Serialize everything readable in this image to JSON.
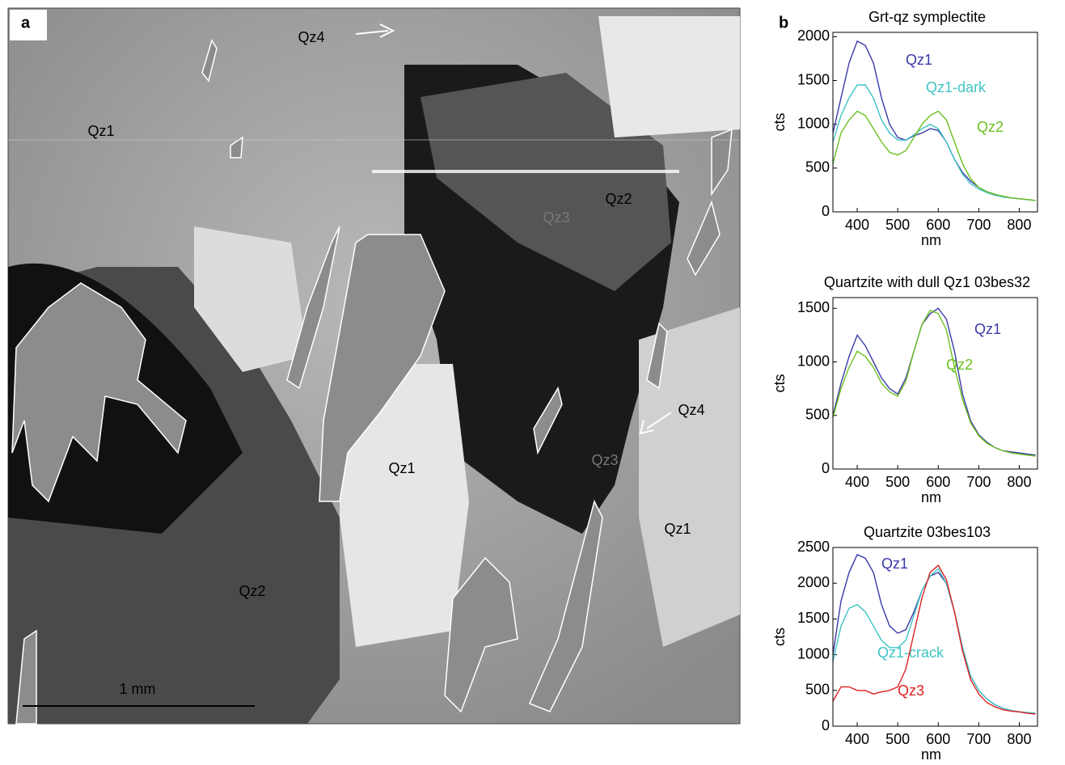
{
  "panel_a": {
    "label": "a",
    "annotations": [
      "Qz4",
      "Qz1",
      "Qz3",
      "Qz2",
      "Qz4",
      "Qz3",
      "Qz1",
      "Qz1",
      "Qz2"
    ],
    "scale_bar": "1 mm"
  },
  "panel_b": {
    "label": "b"
  },
  "chart_data": [
    {
      "type": "line",
      "title": "Grt-qz symplectite",
      "xlabel": "nm",
      "ylabel": "cts",
      "x": [
        340,
        360,
        380,
        400,
        420,
        440,
        460,
        480,
        500,
        520,
        540,
        560,
        580,
        600,
        620,
        640,
        660,
        680,
        700,
        720,
        740,
        760,
        780,
        800,
        820,
        840
      ],
      "xlim": [
        340,
        845
      ],
      "xticks": [
        400,
        500,
        600,
        700,
        800
      ],
      "ylim": [
        0,
        2050
      ],
      "yticks": [
        0,
        500,
        1000,
        1500,
        2000
      ],
      "series": [
        {
          "name": "Qz1",
          "color": "#3a3aa8",
          "values": [
            900,
            1300,
            1700,
            1950,
            1900,
            1700,
            1300,
            1000,
            850,
            820,
            870,
            900,
            950,
            930,
            800,
            600,
            450,
            350,
            280,
            230,
            200,
            170,
            160,
            150,
            140,
            130
          ]
        },
        {
          "name": "Qz1-dark",
          "color": "#40c4c4",
          "values": [
            800,
            1100,
            1300,
            1450,
            1450,
            1300,
            1050,
            900,
            820,
            820,
            880,
            950,
            1000,
            950,
            800,
            600,
            430,
            320,
            260,
            220,
            190,
            170,
            160,
            150,
            140,
            130
          ]
        },
        {
          "name": "Qz2",
          "color": "#6cc020",
          "values": [
            550,
            900,
            1050,
            1150,
            1100,
            950,
            800,
            680,
            650,
            700,
            850,
            1000,
            1100,
            1150,
            1050,
            800,
            550,
            380,
            280,
            230,
            200,
            180,
            160,
            150,
            140,
            130
          ]
        }
      ]
    },
    {
      "type": "line",
      "title": "Quartzite with dull Qz1 03bes32",
      "xlabel": "nm",
      "ylabel": "cts",
      "x": [
        340,
        360,
        380,
        400,
        420,
        440,
        460,
        480,
        500,
        520,
        540,
        560,
        580,
        600,
        620,
        640,
        660,
        680,
        700,
        720,
        740,
        760,
        780,
        800,
        820,
        840
      ],
      "xlim": [
        340,
        845
      ],
      "xticks": [
        400,
        500,
        600,
        700,
        800
      ],
      "ylim": [
        0,
        1600
      ],
      "yticks": [
        0,
        500,
        1000,
        1500
      ],
      "series": [
        {
          "name": "Qz1",
          "color": "#3a3aa8",
          "values": [
            500,
            800,
            1050,
            1250,
            1150,
            1000,
            850,
            750,
            700,
            850,
            1100,
            1350,
            1450,
            1500,
            1400,
            1100,
            700,
            450,
            320,
            250,
            200,
            170,
            160,
            150,
            140,
            130
          ]
        },
        {
          "name": "Qz2",
          "color": "#6cc020",
          "values": [
            480,
            750,
            950,
            1100,
            1050,
            950,
            800,
            720,
            680,
            820,
            1100,
            1350,
            1480,
            1450,
            1300,
            950,
            650,
            430,
            310,
            240,
            200,
            170,
            150,
            140,
            130,
            120
          ]
        }
      ]
    },
    {
      "type": "line",
      "title": "Quartzite 03bes103",
      "xlabel": "nm",
      "ylabel": "cts",
      "x": [
        340,
        360,
        380,
        400,
        420,
        440,
        460,
        480,
        500,
        520,
        540,
        560,
        580,
        600,
        620,
        640,
        660,
        680,
        700,
        720,
        740,
        760,
        780,
        800,
        820,
        840
      ],
      "xlim": [
        340,
        845
      ],
      "xticks": [
        400,
        500,
        600,
        700,
        800
      ],
      "ylim": [
        0,
        2500
      ],
      "yticks": [
        0,
        500,
        1000,
        1500,
        2000,
        2500
      ],
      "series": [
        {
          "name": "Qz1",
          "color": "#3a3aa8",
          "values": [
            1000,
            1750,
            2150,
            2400,
            2350,
            2150,
            1700,
            1400,
            1300,
            1350,
            1600,
            1900,
            2100,
            2150,
            2000,
            1600,
            1100,
            700,
            500,
            380,
            300,
            250,
            220,
            200,
            190,
            180
          ]
        },
        {
          "name": "Qz1-crack",
          "color": "#40c4c4",
          "values": [
            900,
            1400,
            1650,
            1700,
            1600,
            1400,
            1200,
            1100,
            1100,
            1200,
            1550,
            1900,
            2100,
            2200,
            2000,
            1600,
            1100,
            700,
            500,
            380,
            300,
            250,
            220,
            200,
            190,
            180
          ]
        },
        {
          "name": "Qz3",
          "color": "#e02020",
          "values": [
            350,
            550,
            550,
            500,
            500,
            450,
            480,
            500,
            550,
            800,
            1300,
            1800,
            2150,
            2250,
            2050,
            1600,
            1050,
            650,
            450,
            330,
            270,
            230,
            210,
            200,
            180,
            170
          ]
        }
      ]
    }
  ]
}
